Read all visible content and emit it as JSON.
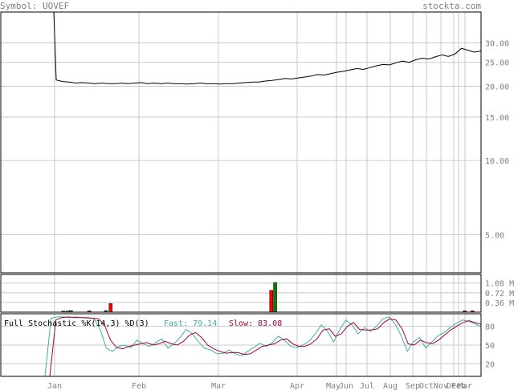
{
  "header": {
    "symbol_label": "Symbol: UOVEF",
    "brand": "stockta.com"
  },
  "colors": {
    "grid": "#c8c8c8",
    "frame": "#000000",
    "axis_text": "#808080",
    "price_line": "#000000",
    "vol_up": "#008000",
    "vol_down": "#ff0000",
    "fast_k": "#40b0a0",
    "slow_d": "#a00040"
  },
  "chart_data": [
    {
      "type": "line",
      "name": "price",
      "y_scale": "log",
      "ylim": [
        3.5,
        40
      ],
      "y_ticks": [
        {
          "label": "30.00",
          "v": 30
        },
        {
          "label": "25.00",
          "v": 25
        },
        {
          "label": "20.00",
          "v": 20
        },
        {
          "label": "15.00",
          "v": 15
        },
        {
          "label": "10.00",
          "v": 10
        },
        {
          "label": "5.00",
          "v": 5
        }
      ],
      "x_labels": [
        "Jan",
        "Feb",
        "Mar",
        "Apr",
        "May",
        "Jun",
        "Jul",
        "Aug",
        "Sep",
        "Oct",
        "Nov",
        "Dec",
        "Feb",
        "Mar"
      ],
      "values": [
        180,
        21.2,
        20.9,
        20.8,
        20.6,
        20.7,
        20.6,
        20.5,
        20.6,
        20.5,
        20.5,
        20.6,
        20.5,
        20.6,
        20.7,
        20.5,
        20.6,
        20.5,
        20.6,
        20.5,
        20.5,
        20.4,
        20.5,
        20.6,
        20.5,
        20.5,
        20.4,
        20.5,
        20.5,
        20.6,
        20.7,
        20.8,
        20.8,
        21.0,
        21.1,
        21.3,
        21.5,
        21.4,
        21.6,
        21.8,
        22.0,
        22.3,
        22.2,
        22.5,
        22.8,
        23.0,
        23.3,
        23.6,
        23.4,
        23.8,
        24.2,
        24.5,
        24.4,
        24.9,
        25.3,
        25.0,
        25.6,
        26.0,
        25.8,
        26.3,
        26.8,
        26.4,
        27.0,
        28.5,
        28.0,
        27.5,
        27.8
      ]
    },
    {
      "type": "bar",
      "name": "volume",
      "unit": "M",
      "ylim": [
        0,
        1.4
      ],
      "y_ticks": [
        {
          "label": "1.08 M",
          "v": 1.08
        },
        {
          "label": "0.72 M",
          "v": 0.72
        },
        {
          "label": "0.36 M",
          "v": 0.36
        }
      ],
      "bars": [
        {
          "t": 0.022,
          "v": 0.04,
          "dir": "down"
        },
        {
          "t": 0.032,
          "v": 0.04,
          "dir": "up"
        },
        {
          "t": 0.04,
          "v": 0.06,
          "dir": "up"
        },
        {
          "t": 0.083,
          "v": 0.05,
          "dir": "down"
        },
        {
          "t": 0.122,
          "v": 0.06,
          "dir": "up"
        },
        {
          "t": 0.133,
          "v": 0.32,
          "dir": "down"
        },
        {
          "t": 0.509,
          "v": 0.81,
          "dir": "down"
        },
        {
          "t": 0.518,
          "v": 1.1,
          "dir": "up"
        },
        {
          "t": 0.962,
          "v": 0.05,
          "dir": "down"
        },
        {
          "t": 0.98,
          "v": 0.05,
          "dir": "down"
        }
      ]
    },
    {
      "type": "line",
      "name": "Full Stochastic %K(14,3) %D(3)",
      "title": "Full Stochastic %K(14,3) %D(3)",
      "fast_label": "Fast: 79.14",
      "slow_label": "Slow: 83.08",
      "ylim": [
        0,
        100
      ],
      "y_ticks": [
        {
          "label": "80",
          "v": 80
        },
        {
          "label": "50",
          "v": 50
        },
        {
          "label": "20",
          "v": 20
        }
      ],
      "series": [
        {
          "name": "Fast",
          "values": [
            0,
            93,
            95,
            95,
            94,
            95,
            94,
            93,
            92,
            75,
            45,
            40,
            48,
            50,
            46,
            58,
            52,
            48,
            54,
            60,
            45,
            52,
            62,
            75,
            68,
            55,
            45,
            42,
            36,
            37,
            42,
            36,
            33,
            40,
            46,
            53,
            48,
            54,
            64,
            58,
            48,
            46,
            50,
            56,
            68,
            82,
            72,
            55,
            75,
            90,
            82,
            68,
            78,
            72,
            80,
            92,
            95,
            84,
            65,
            40,
            55,
            62,
            45,
            55,
            65,
            70,
            78,
            85,
            90,
            88,
            84,
            79
          ]
        },
        {
          "name": "Slow",
          "values": [
            0,
            90,
            94,
            95,
            94,
            94,
            94,
            93,
            92,
            82,
            58,
            46,
            44,
            48,
            50,
            52,
            54,
            50,
            52,
            56,
            52,
            50,
            56,
            66,
            70,
            62,
            50,
            44,
            40,
            37,
            38,
            38,
            35,
            36,
            42,
            48,
            50,
            52,
            58,
            60,
            52,
            48,
            48,
            52,
            60,
            74,
            76,
            64,
            68,
            80,
            86,
            75,
            74,
            74,
            76,
            86,
            92,
            90,
            76,
            52,
            50,
            58,
            54,
            52,
            58,
            66,
            74,
            80,
            86,
            89,
            86,
            83
          ]
        }
      ]
    }
  ]
}
